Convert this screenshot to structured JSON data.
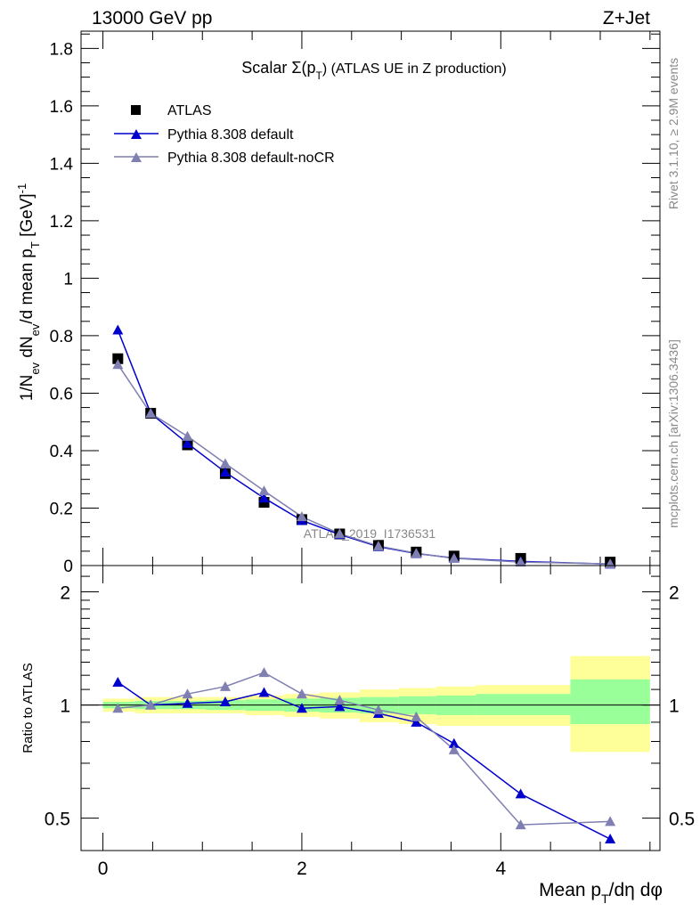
{
  "header": {
    "left": "13000 GeV pp",
    "right": "Z+Jet"
  },
  "side_labels": {
    "rivet": "Rivet 3.1.10, ≥ 2.9M events",
    "mcplots": "mcplots.cern.ch [arXiv:1306.3436]"
  },
  "watermark": "ATLAS_2019_I1736531",
  "colors": {
    "data": "#000000",
    "pythia_default": "#0000cc",
    "pythia_nocr": "#7f7fb2",
    "band_outer": "#ffff99",
    "band_inner": "#99ff99"
  },
  "chart_data": [
    {
      "type": "scatter",
      "title": "Scalar Σ(p_T) (ATLAS UE in Z production)",
      "title_parts": {
        "pre": "Scalar ",
        "sigma": "Σ(p",
        "sub": "T",
        "post": ") (ATLAS UE in Z production)"
      },
      "ylabel_text": "1/N_ev dN_ev/d mean p_T [GeV]^-1",
      "ylabel_parts": [
        "1/N",
        "ev",
        " dN",
        "ev",
        "/d mean p",
        "T",
        " [GeV]",
        "-1"
      ],
      "xlim": [
        -0.22,
        5.6
      ],
      "ylim": [
        0,
        1.86
      ],
      "yticks": [
        0,
        0.2,
        0.4,
        0.6,
        0.8,
        1,
        1.2,
        1.4,
        1.6,
        1.8
      ],
      "ytick_labels": [
        "0",
        "0.2",
        "0.4",
        "0.6",
        "0.8",
        "1",
        "1.2",
        "1.4",
        "1.6",
        "1.8"
      ],
      "legend": {
        "position": "top-left",
        "entries": [
          "ATLAS",
          "Pythia 8.308 default",
          "Pythia 8.308 default-noCR"
        ]
      },
      "x": [
        0.15,
        0.48,
        0.85,
        1.23,
        1.62,
        2.0,
        2.38,
        2.77,
        3.15,
        3.53,
        4.2,
        5.1
      ],
      "series": [
        {
          "name": "ATLAS",
          "marker": "square",
          "values": [
            0.72,
            0.53,
            0.42,
            0.32,
            0.22,
            0.16,
            0.11,
            0.07,
            0.047,
            0.033,
            0.025,
            0.012
          ]
        },
        {
          "name": "Pythia 8.308 default",
          "marker": "triangle",
          "values": [
            0.82,
            0.53,
            0.425,
            0.325,
            0.235,
            0.157,
            0.108,
            0.066,
            0.042,
            0.026,
            0.0145,
            0.005
          ]
        },
        {
          "name": "Pythia 8.308 default-noCR",
          "marker": "triangle",
          "values": [
            0.7,
            0.53,
            0.45,
            0.355,
            0.26,
            0.17,
            0.111,
            0.068,
            0.043,
            0.025,
            0.012,
            0.006
          ]
        }
      ]
    },
    {
      "type": "line",
      "ylabel": "Ratio to ATLAS",
      "xlabel_text": "Mean p_T/dη dφ",
      "xlabel_parts": {
        "pre": "Mean p",
        "sub": "T",
        "post": "/dη dφ"
      },
      "xlim": [
        -0.22,
        5.6
      ],
      "ylim": [
        0.41,
        2.35
      ],
      "xticks": [
        0,
        2,
        4
      ],
      "xtick_labels": [
        "0",
        "2",
        "4"
      ],
      "yticks": [
        0.5,
        1,
        2
      ],
      "ytick_labels": [
        "0.5",
        "1",
        "2"
      ],
      "reference_line": 1,
      "bins": [
        [
          0,
          0.32
        ],
        [
          0.32,
          0.67
        ],
        [
          0.67,
          1.03
        ],
        [
          1.03,
          1.43
        ],
        [
          1.43,
          1.82
        ],
        [
          1.82,
          2.18
        ],
        [
          2.18,
          2.58
        ],
        [
          2.58,
          2.97
        ],
        [
          2.97,
          3.35
        ],
        [
          3.35,
          3.75
        ],
        [
          3.75,
          4.7
        ],
        [
          4.7,
          5.5
        ]
      ],
      "band_outer": [
        [
          0.96,
          1.04
        ],
        [
          0.95,
          1.05
        ],
        [
          0.95,
          1.05
        ],
        [
          0.95,
          1.05
        ],
        [
          0.94,
          1.06
        ],
        [
          0.93,
          1.07
        ],
        [
          0.92,
          1.08
        ],
        [
          0.9,
          1.1
        ],
        [
          0.89,
          1.11
        ],
        [
          0.88,
          1.12
        ],
        [
          0.88,
          1.13
        ],
        [
          0.75,
          1.35
        ]
      ],
      "band_inner": [
        [
          0.98,
          1.02
        ],
        [
          0.975,
          1.025
        ],
        [
          0.975,
          1.025
        ],
        [
          0.97,
          1.03
        ],
        [
          0.965,
          1.035
        ],
        [
          0.96,
          1.04
        ],
        [
          0.955,
          1.045
        ],
        [
          0.95,
          1.05
        ],
        [
          0.945,
          1.055
        ],
        [
          0.94,
          1.06
        ],
        [
          0.94,
          1.07
        ],
        [
          0.89,
          1.17
        ]
      ],
      "x": [
        0.15,
        0.48,
        0.85,
        1.23,
        1.62,
        2.0,
        2.38,
        2.77,
        3.15,
        3.53,
        4.2,
        5.1
      ],
      "series": [
        {
          "name": "Pythia 8.308 default",
          "values": [
            1.15,
            1.0,
            1.01,
            1.02,
            1.08,
            0.98,
            0.99,
            0.95,
            0.9,
            0.79,
            0.58,
            0.44
          ]
        },
        {
          "name": "Pythia 8.308 default-noCR",
          "values": [
            0.98,
            1.0,
            1.07,
            1.12,
            1.22,
            1.07,
            1.03,
            0.97,
            0.93,
            0.76,
            0.48,
            0.49
          ]
        }
      ]
    }
  ]
}
